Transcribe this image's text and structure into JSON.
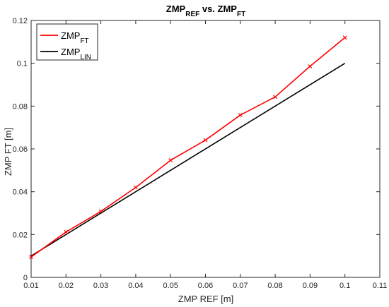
{
  "chart_data": {
    "type": "line",
    "title": {
      "parts": [
        {
          "text": "ZMP",
          "sub": false
        },
        {
          "text": "REF",
          "sub": true
        },
        {
          "text": " vs. ZMP",
          "sub": false
        },
        {
          "text": "FT",
          "sub": true
        }
      ]
    },
    "xlabel": "ZMP REF [m]",
    "ylabel": "ZMP FT [m]",
    "xlim": [
      0.01,
      0.11
    ],
    "ylim": [
      0,
      0.12
    ],
    "xticks": [
      "0.01",
      "0.02",
      "0.03",
      "0.04",
      "0.05",
      "0.06",
      "0.07",
      "0.08",
      "0.09",
      "0.1",
      "0.11"
    ],
    "yticks": [
      "0",
      "0.02",
      "0.04",
      "0.06",
      "0.08",
      "0.1",
      "0.12"
    ],
    "grid": false,
    "legend_position": "top-left",
    "series": [
      {
        "name": {
          "base": "ZMP",
          "sub": "FT"
        },
        "color": "#ff0000",
        "marker": "x",
        "x": [
          0.01,
          0.02,
          0.03,
          0.04,
          0.05,
          0.06,
          0.07,
          0.08,
          0.09,
          0.1
        ],
        "y": [
          0.0095,
          0.0212,
          0.0308,
          0.042,
          0.0547,
          0.0641,
          0.0758,
          0.0843,
          0.0986,
          0.112
        ]
      },
      {
        "name": {
          "base": "ZMP",
          "sub": "LIN"
        },
        "color": "#000000",
        "marker": "none",
        "x": [
          0.01,
          0.1
        ],
        "y": [
          0.01,
          0.1
        ]
      }
    ]
  }
}
